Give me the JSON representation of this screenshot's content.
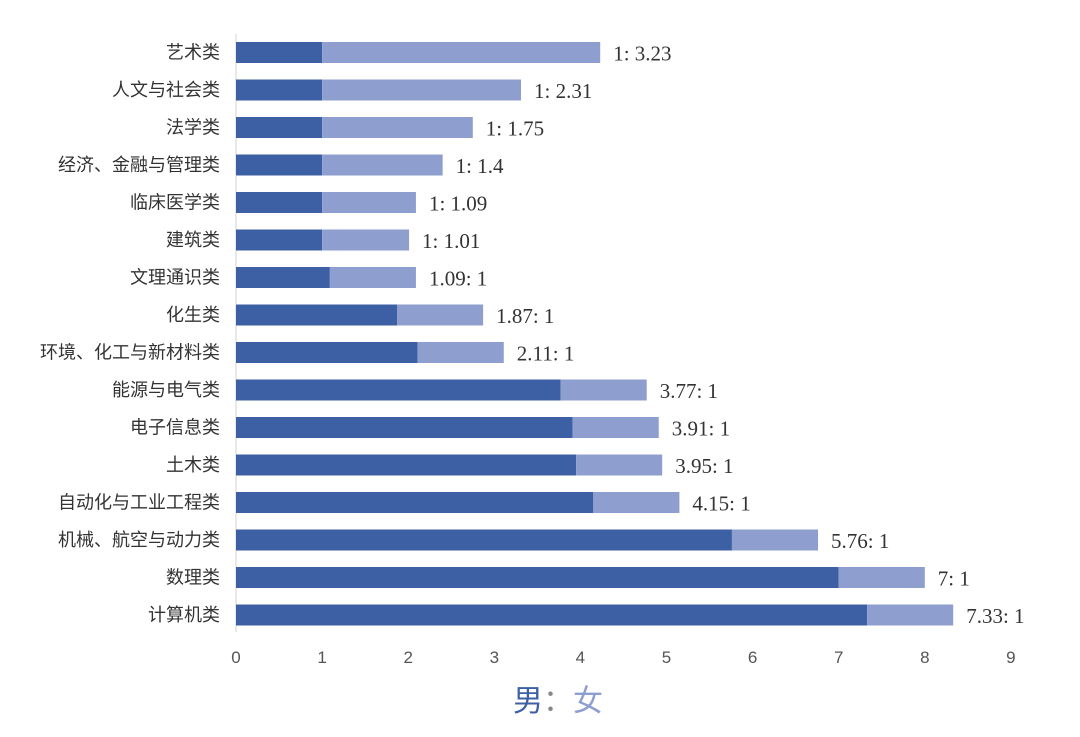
{
  "chart_data": {
    "type": "bar",
    "orientation": "horizontal",
    "stacked": true,
    "categories": [
      "艺术类",
      "人文与社会类",
      "法学类",
      "经济、金融与管理类",
      "临床医学类",
      "建筑类",
      "文理通识类",
      "化生类",
      "环境、化工与新材料类",
      "能源与电气类",
      "电子信息类",
      "土木类",
      "自动化与工业工程类",
      "机械、航空与动力类",
      "数理类",
      "计算机类"
    ],
    "series": [
      {
        "values": [
          1,
          1,
          1,
          1,
          1,
          1,
          1.09,
          1.87,
          2.11,
          3.77,
          3.91,
          3.95,
          4.15,
          5.76,
          7,
          7.33
        ],
        "color": "#3d5fa4"
      },
      {
        "values": [
          3.23,
          2.31,
          1.75,
          1.4,
          1.09,
          1.01,
          1,
          1,
          1,
          1,
          1,
          1,
          1,
          1,
          1,
          1
        ],
        "color": "#8e9fcf"
      }
    ],
    "data_labels": [
      "1: 3.23",
      "1: 2.31",
      "1: 1.75",
      "1: 1.4",
      "1: 1.09",
      "1: 1.01",
      "1.09: 1",
      "1.87: 1",
      "2.11: 1",
      "3.77: 1",
      "3.91: 1",
      "3.95: 1",
      "4.15: 1",
      "5.76: 1",
      "7: 1",
      "7.33: 1"
    ],
    "x_ticks": [
      "0",
      "1",
      "2",
      "3",
      "4",
      "5",
      "6",
      "7",
      "8",
      "9"
    ],
    "xlim": [
      0,
      9
    ],
    "xlabel_parts": [
      "男",
      "：",
      "女"
    ],
    "xlabel_colors": [
      "#3d5fa4",
      "#888888",
      "#8e9fcf"
    ],
    "grid": false,
    "legend": "none"
  }
}
